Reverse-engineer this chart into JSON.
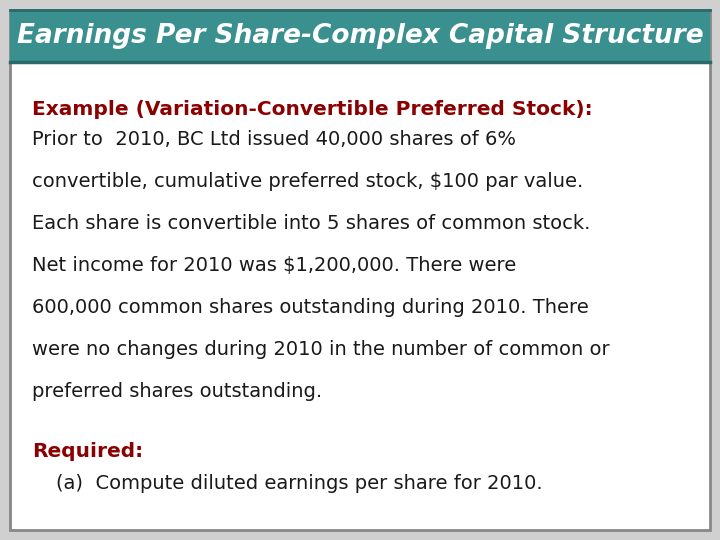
{
  "title": "Earnings Per Share-Complex Capital Structure",
  "title_bg_color": "#3a8f8f",
  "title_text_color": "#ffffff",
  "title_font_size": 19,
  "subtitle": "Example (Variation-Convertible Preferred Stock):",
  "subtitle_color": "#8b0000",
  "subtitle_font_size": 14.5,
  "body_lines": [
    "Prior to  2010, BC Ltd issued 40,000 shares of 6%",
    "convertible, cumulative preferred stock, $100 par value.",
    "Each share is convertible into 5 shares of common stock.",
    "Net income for 2010 was $1,200,000. There were",
    "600,000 common shares outstanding during 2010. There",
    "were no changes during 2010 in the number of common or",
    "preferred shares outstanding."
  ],
  "body_color": "#1a1a1a",
  "body_font_size": 14,
  "required_label": "Required:",
  "required_color": "#8b0000",
  "required_font_size": 14.5,
  "required_item": "(a)  Compute diluted earnings per share for 2010.",
  "required_item_color": "#1a1a1a",
  "required_item_font_size": 14,
  "outer_bg_color": "#d0d0d0",
  "inner_bg_color": "#ffffff",
  "title_border_color": "#2a6a6a",
  "outer_border_color": "#888888"
}
